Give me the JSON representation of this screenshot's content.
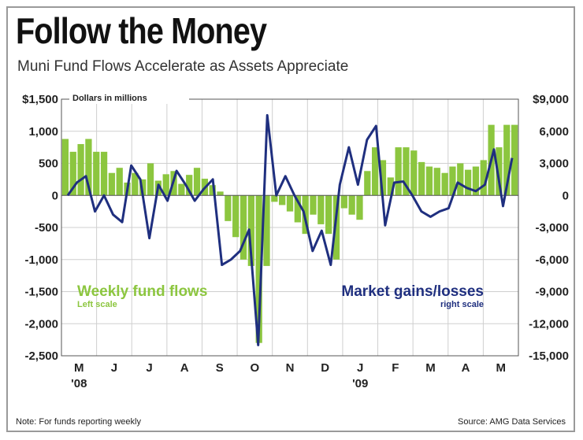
{
  "header": {
    "title": "Follow the Money",
    "subtitle": "Muni Fund Flows Accelerate as Assets Appreciate"
  },
  "footer": {
    "note": "Note: For funds reporting weekly",
    "source": "Source: AMG Data Services"
  },
  "colors": {
    "bars": "#8cc63f",
    "line": "#1f2f7f",
    "grid": "#cfcfcf",
    "text": "#222222"
  },
  "chart_data": {
    "type": "bar+line",
    "title": "Follow the Money",
    "subtitle": "Muni Fund Flows Accelerate as Assets Appreciate",
    "unit_label": "Dollars in millions",
    "left_axis": {
      "ylim": [
        -2500,
        1500
      ],
      "ticks": [
        1500,
        1000,
        500,
        0,
        -500,
        -1000,
        -1500,
        -2000,
        -2500
      ],
      "tick_labels": [
        "$1,500",
        "1,000",
        "500",
        "0",
        "-500",
        "-1,000",
        "-1,500",
        "-2,000",
        "-2,500"
      ]
    },
    "right_axis": {
      "ylim": [
        -15000,
        9000
      ],
      "ticks": [
        9000,
        6000,
        3000,
        0,
        -3000,
        -6000,
        -9000,
        -12000,
        -15000
      ],
      "tick_labels": [
        "$9,000",
        "6,000",
        "3,000",
        "0",
        "-3,000",
        "-6,000",
        "-9,000",
        "-12,000",
        "-15,000"
      ]
    },
    "x_month_labels": [
      "M",
      "J",
      "J",
      "A",
      "S",
      "O",
      "N",
      "D",
      "J",
      "F",
      "M",
      "A",
      "M"
    ],
    "x_year_labels": [
      {
        "label": "'08",
        "month_index": 0
      },
      {
        "label": "'09",
        "month_index": 8
      }
    ],
    "weeks_per_month": [
      4.35,
      4.35,
      4.35,
      4.35,
      4.35,
      4.35,
      4.35,
      4.35,
      4.35,
      4.35,
      4.35,
      4.35,
      4.35
    ],
    "series": [
      {
        "name": "Weekly fund flows",
        "note": "Left scale",
        "type": "bar",
        "axis": "left",
        "values": [
          880,
          680,
          800,
          880,
          680,
          680,
          350,
          430,
          200,
          350,
          250,
          500,
          230,
          330,
          380,
          180,
          320,
          430,
          260,
          160,
          60,
          -400,
          -650,
          -1000,
          -1100,
          -2300,
          -1100,
          -100,
          -150,
          -250,
          -420,
          -600,
          -300,
          -450,
          -600,
          -1000,
          -200,
          -300,
          -380,
          380,
          750,
          550,
          280,
          750,
          750,
          700,
          520,
          450,
          430,
          350,
          450,
          500,
          400,
          450,
          550,
          1100,
          750,
          1100,
          1100
        ]
      },
      {
        "name": "Market gains/losses",
        "note": "right scale",
        "type": "line",
        "axis": "right",
        "values": [
          0,
          1200,
          1800,
          -1500,
          0,
          -1800,
          -2500,
          2800,
          1500,
          -4000,
          1000,
          -500,
          2300,
          1000,
          -500,
          600,
          1500,
          -6500,
          -6000,
          -5200,
          -3200,
          -14000,
          7500,
          0,
          1800,
          0,
          -1500,
          -5200,
          -3300,
          -6500,
          1000,
          4500,
          1000,
          5200,
          6500,
          -2800,
          1200,
          1300,
          0,
          -1500,
          -2000,
          -1500,
          -1200,
          1200,
          700,
          400,
          1000,
          4300,
          -1000,
          3500
        ]
      }
    ],
    "annotations": [
      {
        "text": "Weekly fund flows",
        "sub": "Left scale",
        "placement": "lower-left"
      },
      {
        "text": "Market gains/losses",
        "sub": "right scale",
        "placement": "lower-right"
      }
    ]
  }
}
